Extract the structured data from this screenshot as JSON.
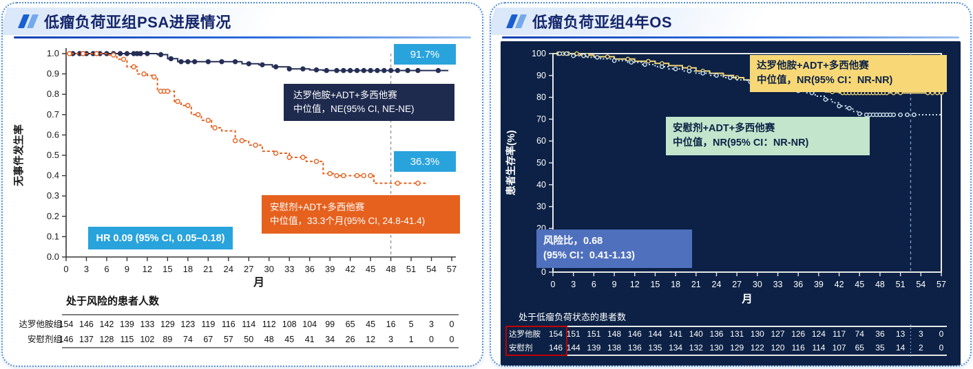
{
  "accent_colors": {
    "header_text": "#15266b",
    "header_rule": "#1b55cc",
    "card_border": "#4e8bd4",
    "cyan_badge": "#29a3dc",
    "navy_box": "#1e2a4e",
    "orange": "#e6611e",
    "right_chart_bg": "#0c2145",
    "yellow": "#f3d679",
    "yellow_box": "#f8d876",
    "green_box": "#c2e5cc",
    "blue_hr_box": "#4f70bd",
    "red_highlight": "#c00000"
  },
  "left_panel": {
    "title": "低瘤负荷亚组PSA进展情况",
    "boxes": {
      "daro": {
        "line1": "达罗他胺+ADT+多西他赛",
        "line2": "中位值，NE(95% CI, NE-NE)"
      },
      "placebo": {
        "line1": "安慰剂+ADT+多西他赛",
        "line2": "中位值，33.3个月(95% CI, 24.8-41.4)"
      },
      "hr": "HR 0.09 (95% CI, 0.05–0.18)",
      "daro_rate": "91.7%",
      "placebo_rate": "36.3%"
    },
    "risk_table": {
      "title": "处于风险的患者人数",
      "rows": [
        {
          "label": "达罗他胺组",
          "values": [
            154,
            146,
            142,
            139,
            133,
            129,
            123,
            119,
            116,
            114,
            112,
            108,
            104,
            99,
            65,
            45,
            16,
            5,
            3,
            0
          ]
        },
        {
          "label": "安慰剂组",
          "values": [
            146,
            137,
            128,
            115,
            102,
            89,
            74,
            67,
            57,
            50,
            48,
            45,
            41,
            34,
            26,
            12,
            3,
            1,
            0,
            0
          ]
        }
      ]
    }
  },
  "right_panel": {
    "title": "低瘤负荷亚组4年OS",
    "boxes": {
      "daro": {
        "line1": "达罗他胺+ADT+多西他赛",
        "line2": "中位值，NR(95% CI：NR-NR)"
      },
      "placebo": {
        "line1": "安慰剂+ADT+多西他赛",
        "line2": "中位值，NR(95% CI：NR-NR)"
      },
      "hr_line1": "风险比，0.68",
      "hr_line2": "(95% CI：0.41-1.13)"
    },
    "risk_table": {
      "title": "处于低瘤负荷状态的患者数",
      "rows": [
        {
          "label": "达罗他胺",
          "values": [
            154,
            151,
            151,
            148,
            146,
            144,
            141,
            140,
            136,
            131,
            130,
            127,
            126,
            124,
            117,
            74,
            36,
            13,
            3,
            0
          ]
        },
        {
          "label": "安慰剂",
          "values": [
            146,
            144,
            139,
            138,
            136,
            135,
            134,
            132,
            130,
            129,
            122,
            120,
            116,
            114,
            107,
            65,
            35,
            14,
            2,
            0
          ]
        }
      ]
    }
  },
  "chart_data": [
    {
      "type": "line",
      "subtype": "kaplan-meier-step",
      "title": "低瘤负荷亚组PSA进展情况",
      "xlabel": "月",
      "ylabel": "无事件发生率",
      "xlim": [
        0,
        57
      ],
      "xtick_step": 3,
      "ylim": [
        0,
        1.0
      ],
      "ytick_step": 0.1,
      "ytick_decimals": 1,
      "grid": false,
      "legend_position": "annotation-boxes",
      "dashed_x": 48,
      "hr_text": "HR 0.09 (95% CI, 0.05–0.18)",
      "series": [
        {
          "name": "达罗他胺+ADT+多西他赛",
          "median": "NE(95% CI, NE-NE)",
          "rate_at_48mo": "91.7%",
          "color": "#252f55",
          "style": "solid",
          "marker_fill": "#252f55",
          "points": [
            [
              0,
              1.0
            ],
            [
              13.5,
              1.0
            ],
            [
              13.5,
              0.995
            ],
            [
              15,
              0.995
            ],
            [
              15,
              0.975
            ],
            [
              16.5,
              0.975
            ],
            [
              16.5,
              0.96
            ],
            [
              26,
              0.96
            ],
            [
              26,
              0.95
            ],
            [
              28.5,
              0.95
            ],
            [
              28.5,
              0.945
            ],
            [
              30.5,
              0.945
            ],
            [
              30.5,
              0.935
            ],
            [
              33,
              0.935
            ],
            [
              33,
              0.925
            ],
            [
              36,
              0.925
            ],
            [
              36,
              0.92
            ],
            [
              38,
              0.92
            ],
            [
              38,
              0.917
            ],
            [
              56.5,
              0.917
            ]
          ],
          "censor_x": [
            1,
            2,
            3,
            4,
            5,
            6,
            7,
            8,
            9,
            10,
            10.5,
            11,
            12,
            14,
            15.5,
            17,
            18,
            19,
            21,
            23,
            25,
            27,
            29,
            31,
            33,
            35,
            37,
            38.5,
            40,
            41,
            42,
            43,
            44,
            45,
            46,
            47,
            48,
            49,
            50.5,
            52,
            55
          ]
        },
        {
          "name": "安慰剂+ADT+多西他赛",
          "median": "33.3个月(95% CI, 24.8-41.4)",
          "rate_at_48mo": "36.3%",
          "color": "#e6611e",
          "style": "dashed",
          "marker_fill": "#ffffff",
          "points": [
            [
              0,
              1.0
            ],
            [
              6,
              1.0
            ],
            [
              6,
              0.993
            ],
            [
              7.5,
              0.993
            ],
            [
              7.5,
              0.972
            ],
            [
              9,
              0.972
            ],
            [
              9,
              0.935
            ],
            [
              10.5,
              0.935
            ],
            [
              10.5,
              0.9
            ],
            [
              12,
              0.9
            ],
            [
              12,
              0.893
            ],
            [
              13,
              0.893
            ],
            [
              13,
              0.885
            ],
            [
              13.5,
              0.885
            ],
            [
              13.5,
              0.815
            ],
            [
              16,
              0.815
            ],
            [
              16,
              0.765
            ],
            [
              17,
              0.765
            ],
            [
              17,
              0.745
            ],
            [
              18.5,
              0.745
            ],
            [
              18.5,
              0.7
            ],
            [
              20,
              0.7
            ],
            [
              20,
              0.672
            ],
            [
              21.5,
              0.672
            ],
            [
              21.5,
              0.635
            ],
            [
              23,
              0.635
            ],
            [
              23,
              0.62
            ],
            [
              25,
              0.62
            ],
            [
              25,
              0.572
            ],
            [
              27,
              0.572
            ],
            [
              27,
              0.55
            ],
            [
              29,
              0.55
            ],
            [
              29,
              0.52
            ],
            [
              31,
              0.52
            ],
            [
              31,
              0.51
            ],
            [
              33,
              0.51
            ],
            [
              33,
              0.49
            ],
            [
              35.5,
              0.49
            ],
            [
              35.5,
              0.47
            ],
            [
              38,
              0.47
            ],
            [
              38,
              0.41
            ],
            [
              39.5,
              0.41
            ],
            [
              39.5,
              0.4
            ],
            [
              45.5,
              0.4
            ],
            [
              45.5,
              0.363
            ],
            [
              53.5,
              0.363
            ]
          ],
          "censor_x": [
            0.5,
            2.5,
            4.5,
            7,
            8.5,
            10,
            11.5,
            13,
            14,
            14.5,
            15,
            16.5,
            18,
            19.5,
            21,
            22,
            25,
            26,
            28,
            31,
            33,
            35,
            37,
            39,
            40,
            41,
            43,
            44,
            45,
            49,
            52
          ]
        }
      ]
    },
    {
      "type": "line",
      "subtype": "kaplan-meier-step",
      "title": "低瘤负荷亚组4年OS",
      "xlabel": "月",
      "ylabel": "患者生存率(%)",
      "xlim": [
        0,
        57
      ],
      "xtick_step": 3,
      "ylim": [
        0,
        100
      ],
      "ytick_step": 10,
      "ytick_decimals": 0,
      "grid": false,
      "legend_position": "annotation-boxes",
      "dashed_x": 52.5,
      "hr_text": "风险比，0.68 (95% CI：0.41-1.13)",
      "series": [
        {
          "name": "达罗他胺+ADT+多西他赛",
          "median": "NR(95% CI：NR-NR)",
          "color": "#f3d679",
          "style": "solid",
          "marker_fill": "#0c2145",
          "points": [
            [
              0,
              100
            ],
            [
              4,
              100
            ],
            [
              4,
              99.3
            ],
            [
              6,
              99.3
            ],
            [
              6,
              98.6
            ],
            [
              9,
              98.6
            ],
            [
              9,
              97.5
            ],
            [
              12,
              97.5
            ],
            [
              12,
              96.5
            ],
            [
              15,
              96.5
            ],
            [
              15,
              95.5
            ],
            [
              17,
              95.5
            ],
            [
              17,
              94.5
            ],
            [
              19,
              94.5
            ],
            [
              19,
              93.5
            ],
            [
              21,
              93.5
            ],
            [
              21,
              92
            ],
            [
              23,
              92
            ],
            [
              23,
              91
            ],
            [
              25,
              91
            ],
            [
              25,
              90
            ],
            [
              26.5,
              90
            ],
            [
              26.5,
              89
            ],
            [
              28,
              89
            ],
            [
              28,
              88
            ],
            [
              29.5,
              88
            ],
            [
              29.5,
              87
            ],
            [
              31,
              87
            ],
            [
              31,
              86
            ],
            [
              33,
              86
            ],
            [
              33,
              85
            ],
            [
              34.5,
              85
            ],
            [
              34.5,
              84
            ],
            [
              36,
              84
            ],
            [
              36,
              83.5
            ],
            [
              38,
              83.5
            ],
            [
              38,
              83
            ],
            [
              40,
              83
            ],
            [
              40,
              82.5
            ],
            [
              42,
              82.5
            ],
            [
              42,
              82
            ],
            [
              57,
              82
            ]
          ],
          "censor_x": [
            0.8,
            1.5,
            2.2,
            3.5,
            5,
            8,
            11,
            14,
            16,
            20,
            22,
            27,
            30,
            35,
            37,
            41,
            42.5,
            43,
            43.5,
            44,
            44.5,
            45,
            45.5,
            46,
            46.5,
            47,
            47.5,
            48,
            48.5,
            49,
            50,
            51,
            55,
            55.7,
            56.4,
            57
          ]
        },
        {
          "name": "安慰剂+ADT+多西他赛",
          "median": "NR(95% CI：NR-NR)",
          "color": "#cfe3ef",
          "style": "dotted",
          "marker_fill": "#0c2145",
          "points": [
            [
              0,
              100
            ],
            [
              3,
              100
            ],
            [
              3,
              99
            ],
            [
              5,
              99
            ],
            [
              5,
              98.3
            ],
            [
              7,
              98.3
            ],
            [
              7,
              97.6
            ],
            [
              9,
              97.6
            ],
            [
              9,
              96.8
            ],
            [
              11,
              96.8
            ],
            [
              11,
              96
            ],
            [
              13,
              96
            ],
            [
              13,
              95
            ],
            [
              15,
              95
            ],
            [
              15,
              94
            ],
            [
              17,
              94
            ],
            [
              17,
              93
            ],
            [
              19,
              93
            ],
            [
              19,
              92
            ],
            [
              21,
              92
            ],
            [
              21,
              91
            ],
            [
              23,
              91
            ],
            [
              23,
              90
            ],
            [
              25,
              90
            ],
            [
              25,
              89
            ],
            [
              27,
              89
            ],
            [
              27,
              88
            ],
            [
              28.5,
              88
            ],
            [
              28.5,
              87
            ],
            [
              30,
              87
            ],
            [
              30,
              86
            ],
            [
              31.5,
              86
            ],
            [
              31.5,
              85
            ],
            [
              33,
              85
            ],
            [
              33,
              84
            ],
            [
              35,
              84
            ],
            [
              35,
              83
            ],
            [
              37,
              83
            ],
            [
              37,
              82
            ],
            [
              38.5,
              82
            ],
            [
              38.5,
              80.5
            ],
            [
              40,
              80.5
            ],
            [
              40,
              79
            ],
            [
              41,
              79
            ],
            [
              41,
              77.5
            ],
            [
              42,
              77.5
            ],
            [
              42,
              76
            ],
            [
              43,
              76
            ],
            [
              43,
              75
            ],
            [
              44,
              75
            ],
            [
              44,
              73.5
            ],
            [
              45,
              73.5
            ],
            [
              45,
              72.5
            ],
            [
              46,
              72.5
            ],
            [
              46,
              72
            ],
            [
              57,
              72
            ]
          ],
          "censor_x": [
            1,
            2,
            3,
            4.5,
            6.5,
            9,
            11.5,
            13.5,
            16,
            18,
            20,
            22,
            24,
            26,
            29,
            31,
            34,
            36,
            38,
            40,
            42,
            43.5,
            45,
            46,
            46.5,
            47,
            47.5,
            48,
            48.5,
            49,
            49.5,
            50,
            51,
            52,
            53
          ]
        }
      ]
    }
  ]
}
